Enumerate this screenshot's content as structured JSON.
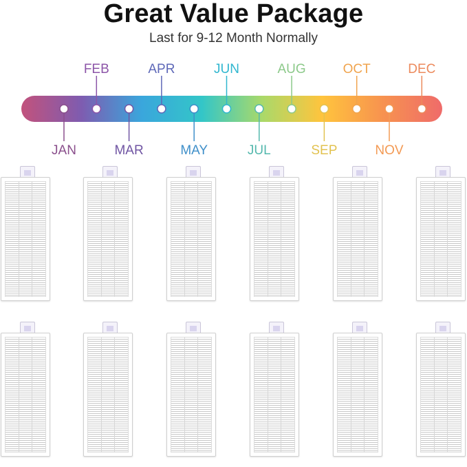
{
  "header": {
    "title": "Great Value Package",
    "subtitle": "Last for 9-12 Month Normally"
  },
  "timeline": {
    "months": [
      {
        "label": "JAN",
        "color": "#8a4f8c",
        "position": "below"
      },
      {
        "label": "FEB",
        "color": "#8c55a8",
        "position": "above"
      },
      {
        "label": "MAR",
        "color": "#7055a3",
        "position": "below"
      },
      {
        "label": "APR",
        "color": "#5e68b8",
        "position": "above"
      },
      {
        "label": "MAY",
        "color": "#3f8fc9",
        "position": "below"
      },
      {
        "label": "JUN",
        "color": "#2fb6cf",
        "position": "above"
      },
      {
        "label": "JUL",
        "color": "#54b8ad",
        "position": "below"
      },
      {
        "label": "AUG",
        "color": "#8cc98a",
        "position": "above"
      },
      {
        "label": "SEP",
        "color": "#e2c250",
        "position": "below"
      },
      {
        "label": "OCT",
        "color": "#f0a44e",
        "position": "above"
      },
      {
        "label": "NOV",
        "color": "#f39a54",
        "position": "below"
      },
      {
        "label": "DEC",
        "color": "#ec8a5c",
        "position": "above"
      }
    ],
    "gradient_stops": [
      "#c2527c",
      "#7e5cb0",
      "#3aa6dc",
      "#33c6c8",
      "#a9d96a",
      "#ffc43d",
      "#f7934f",
      "#ef6b6a"
    ]
  },
  "filters": {
    "rows": 2,
    "per_row": 6,
    "count": 12
  }
}
